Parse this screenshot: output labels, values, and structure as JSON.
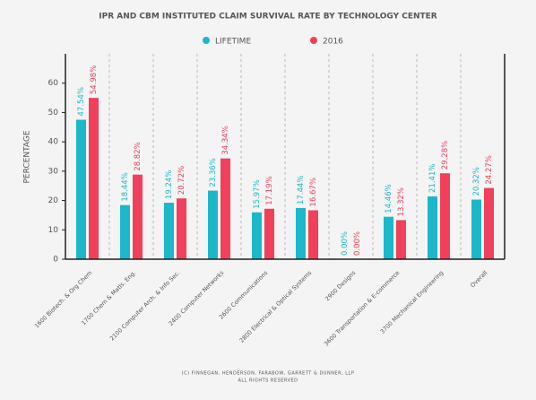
{
  "chart_data": {
    "type": "bar",
    "title": "IPR AND CBM INSTITUTED CLAIM SURVIVAL RATE BY TECHNOLOGY CENTER",
    "y_label": "PERCENTAGE",
    "categories": [
      "1600 Biotech. & Org Chem",
      "1700 Chem & Matls. Eng.",
      "2100 Computer Arch. & Info Sec.",
      "2400 Computer Networks",
      "2600 Communications",
      "2800 Electrical & Optical Systems",
      "2900 Designs",
      "3600 Transportation & E-commerce",
      "3700 Mechanical Engineering",
      "Overall"
    ],
    "series": [
      {
        "name": "LIFETIME",
        "color": "#1cb7c9",
        "values": [
          47.54,
          18.44,
          19.24,
          23.36,
          15.97,
          17.44,
          0.0,
          14.46,
          21.41,
          20.32
        ],
        "value_labels": [
          "47.54%",
          "18.44%",
          "19.24%",
          "23.36%",
          "15.97%",
          "17.44%",
          "0.00%",
          "14.46%",
          "21.41%",
          "20.32%"
        ]
      },
      {
        "name": "2016",
        "color": "#f0405b",
        "values": [
          54.98,
          28.82,
          20.72,
          34.34,
          17.19,
          16.67,
          0.0,
          13.32,
          29.28,
          24.27
        ],
        "value_labels": [
          "54.98%",
          "28.82%",
          "20.72%",
          "34.34%",
          "17.19%",
          "16.67%",
          "0.00%",
          "13.32%",
          "29.28%",
          "24.27%"
        ]
      }
    ],
    "ylim": [
      0,
      70
    ],
    "yticks": [
      0,
      10,
      20,
      30,
      40,
      50,
      60
    ],
    "footnote": [
      "(C) FINNEGAN, HENDERSON, FARABOW, GARRETT & DUNNER, LLP",
      "ALL RIGHTS RESERVED"
    ]
  }
}
